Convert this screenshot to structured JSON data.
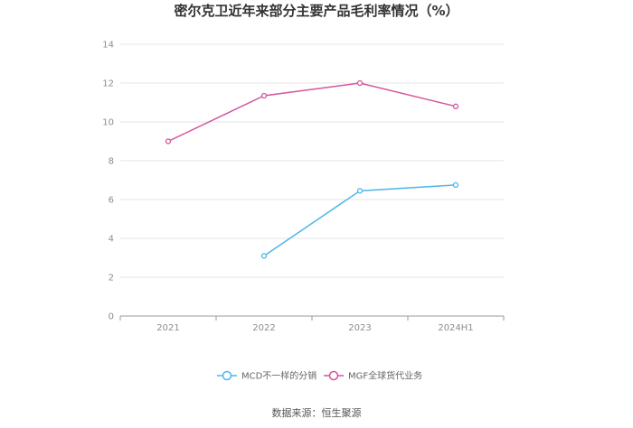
{
  "chart_data": {
    "type": "line",
    "title": "密尔克卫近年来部分主要产品毛利率情况（%）",
    "categories": [
      "2021",
      "2022",
      "2023",
      "2024H1"
    ],
    "ylim": [
      0,
      14
    ],
    "yticks": [
      0,
      2,
      4,
      6,
      8,
      10,
      12,
      14
    ],
    "grid": true,
    "legend_position": "bottom",
    "series": [
      {
        "name": "MCD不一样的分销",
        "color": "#4db6e8",
        "values": [
          null,
          3.1,
          6.45,
          6.75
        ]
      },
      {
        "name": "MGF全球货代业务",
        "color": "#d4559e",
        "values": [
          9.0,
          11.35,
          12.0,
          10.8
        ]
      }
    ]
  },
  "source": "数据来源：恒生聚源"
}
